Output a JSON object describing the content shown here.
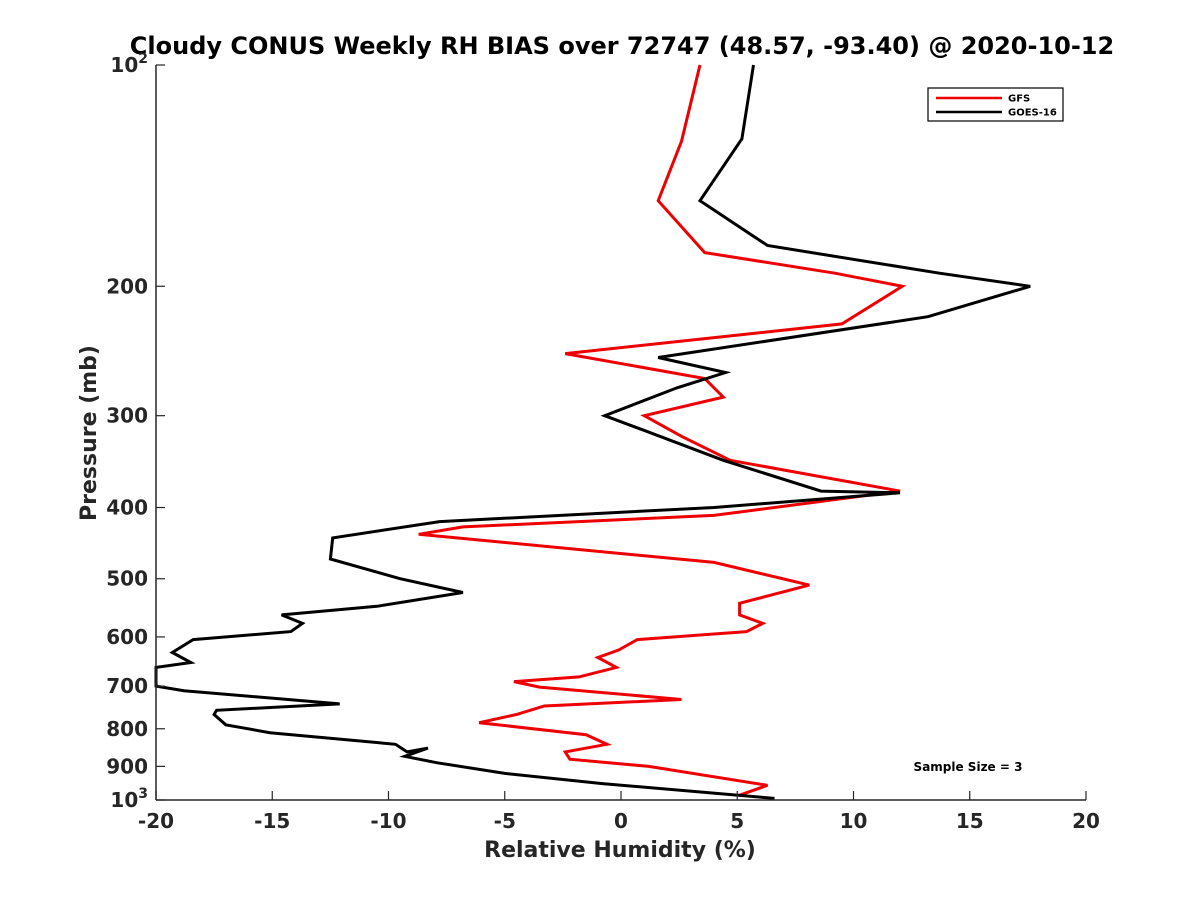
{
  "chart_data": {
    "type": "line",
    "title": "Cloudy CONUS Weekly RH BIAS over 72747 (48.57, -93.40) @ 2020-10-12",
    "xlabel": "Relative Humidity (%)",
    "ylabel": "Pressure (mb)",
    "xlim": [
      -20,
      20
    ],
    "ylim": [
      100,
      1000
    ],
    "yscale": "log",
    "yreversed": true,
    "x_ticks": [
      -20,
      -15,
      -10,
      -5,
      0,
      5,
      10,
      15,
      20
    ],
    "y_ticks": [
      {
        "value": 100,
        "label": "10",
        "exp": "2"
      },
      {
        "value": 200,
        "label": "200"
      },
      {
        "value": 300,
        "label": "300"
      },
      {
        "value": 400,
        "label": "400"
      },
      {
        "value": 500,
        "label": "500"
      },
      {
        "value": 600,
        "label": "600"
      },
      {
        "value": 700,
        "label": "700"
      },
      {
        "value": 800,
        "label": "800"
      },
      {
        "value": 900,
        "label": "900"
      },
      {
        "value": 1000,
        "label": "10",
        "exp": "3"
      }
    ],
    "legend_position": "top-right",
    "annotation": "Sample Size = 3",
    "series": [
      {
        "name": "GFS",
        "color": "#ee0000",
        "x": [
          3.4,
          2.6,
          1.6,
          3.6,
          9.2,
          12.1,
          9.5,
          -2.4,
          3.6,
          4.4,
          1.0,
          2.6,
          4.7,
          12.0,
          4.0,
          -6.8,
          -8.7,
          4.0,
          8.1,
          5.1,
          5.1,
          6.1,
          5.4,
          0.7,
          -0.1,
          -1.0,
          -0.2,
          -1.8,
          -4.6,
          -3.5,
          2.6,
          -3.3,
          -4.5,
          -6.1,
          -1.5,
          -0.6,
          -2.4,
          -2.2,
          1.2,
          6.3,
          5.1
        ],
        "y": [
          100,
          127,
          153,
          180,
          192,
          200,
          225,
          247,
          267,
          283,
          300,
          320,
          345,
          380,
          410,
          425,
          435,
          475,
          510,
          540,
          560,
          575,
          590,
          605,
          625,
          640,
          660,
          680,
          690,
          702,
          730,
          745,
          765,
          785,
          815,
          840,
          860,
          880,
          900,
          955,
          985
        ]
      },
      {
        "name": "GOES-16",
        "color": "#000000",
        "x": [
          5.7,
          5.2,
          3.4,
          6.3,
          13.7,
          17.6,
          13.2,
          1.6,
          4.5,
          2.4,
          -0.7,
          1.1,
          4.4,
          8.6,
          12.0,
          4.0,
          -7.8,
          -12.4,
          -12.5,
          -9.5,
          -6.8,
          -10.5,
          -14.6,
          -13.7,
          -14.2,
          -18.4,
          -19.3,
          -18.5,
          -20.0,
          -20.0,
          -18.8,
          -12.1,
          -17.4,
          -17.5,
          -17.0,
          -15.1,
          -9.7,
          -9.2,
          -8.3,
          -9.3,
          -7.9,
          -5.0,
          -0.8,
          6.6
        ],
        "y": [
          100,
          126,
          153,
          176,
          192,
          200,
          220,
          250,
          262,
          275,
          300,
          315,
          345,
          380,
          382,
          400,
          418,
          440,
          470,
          500,
          522,
          545,
          560,
          575,
          590,
          605,
          630,
          650,
          660,
          700,
          710,
          740,
          755,
          765,
          790,
          810,
          840,
          860,
          850,
          872,
          890,
          920,
          950,
          995
        ]
      }
    ]
  }
}
